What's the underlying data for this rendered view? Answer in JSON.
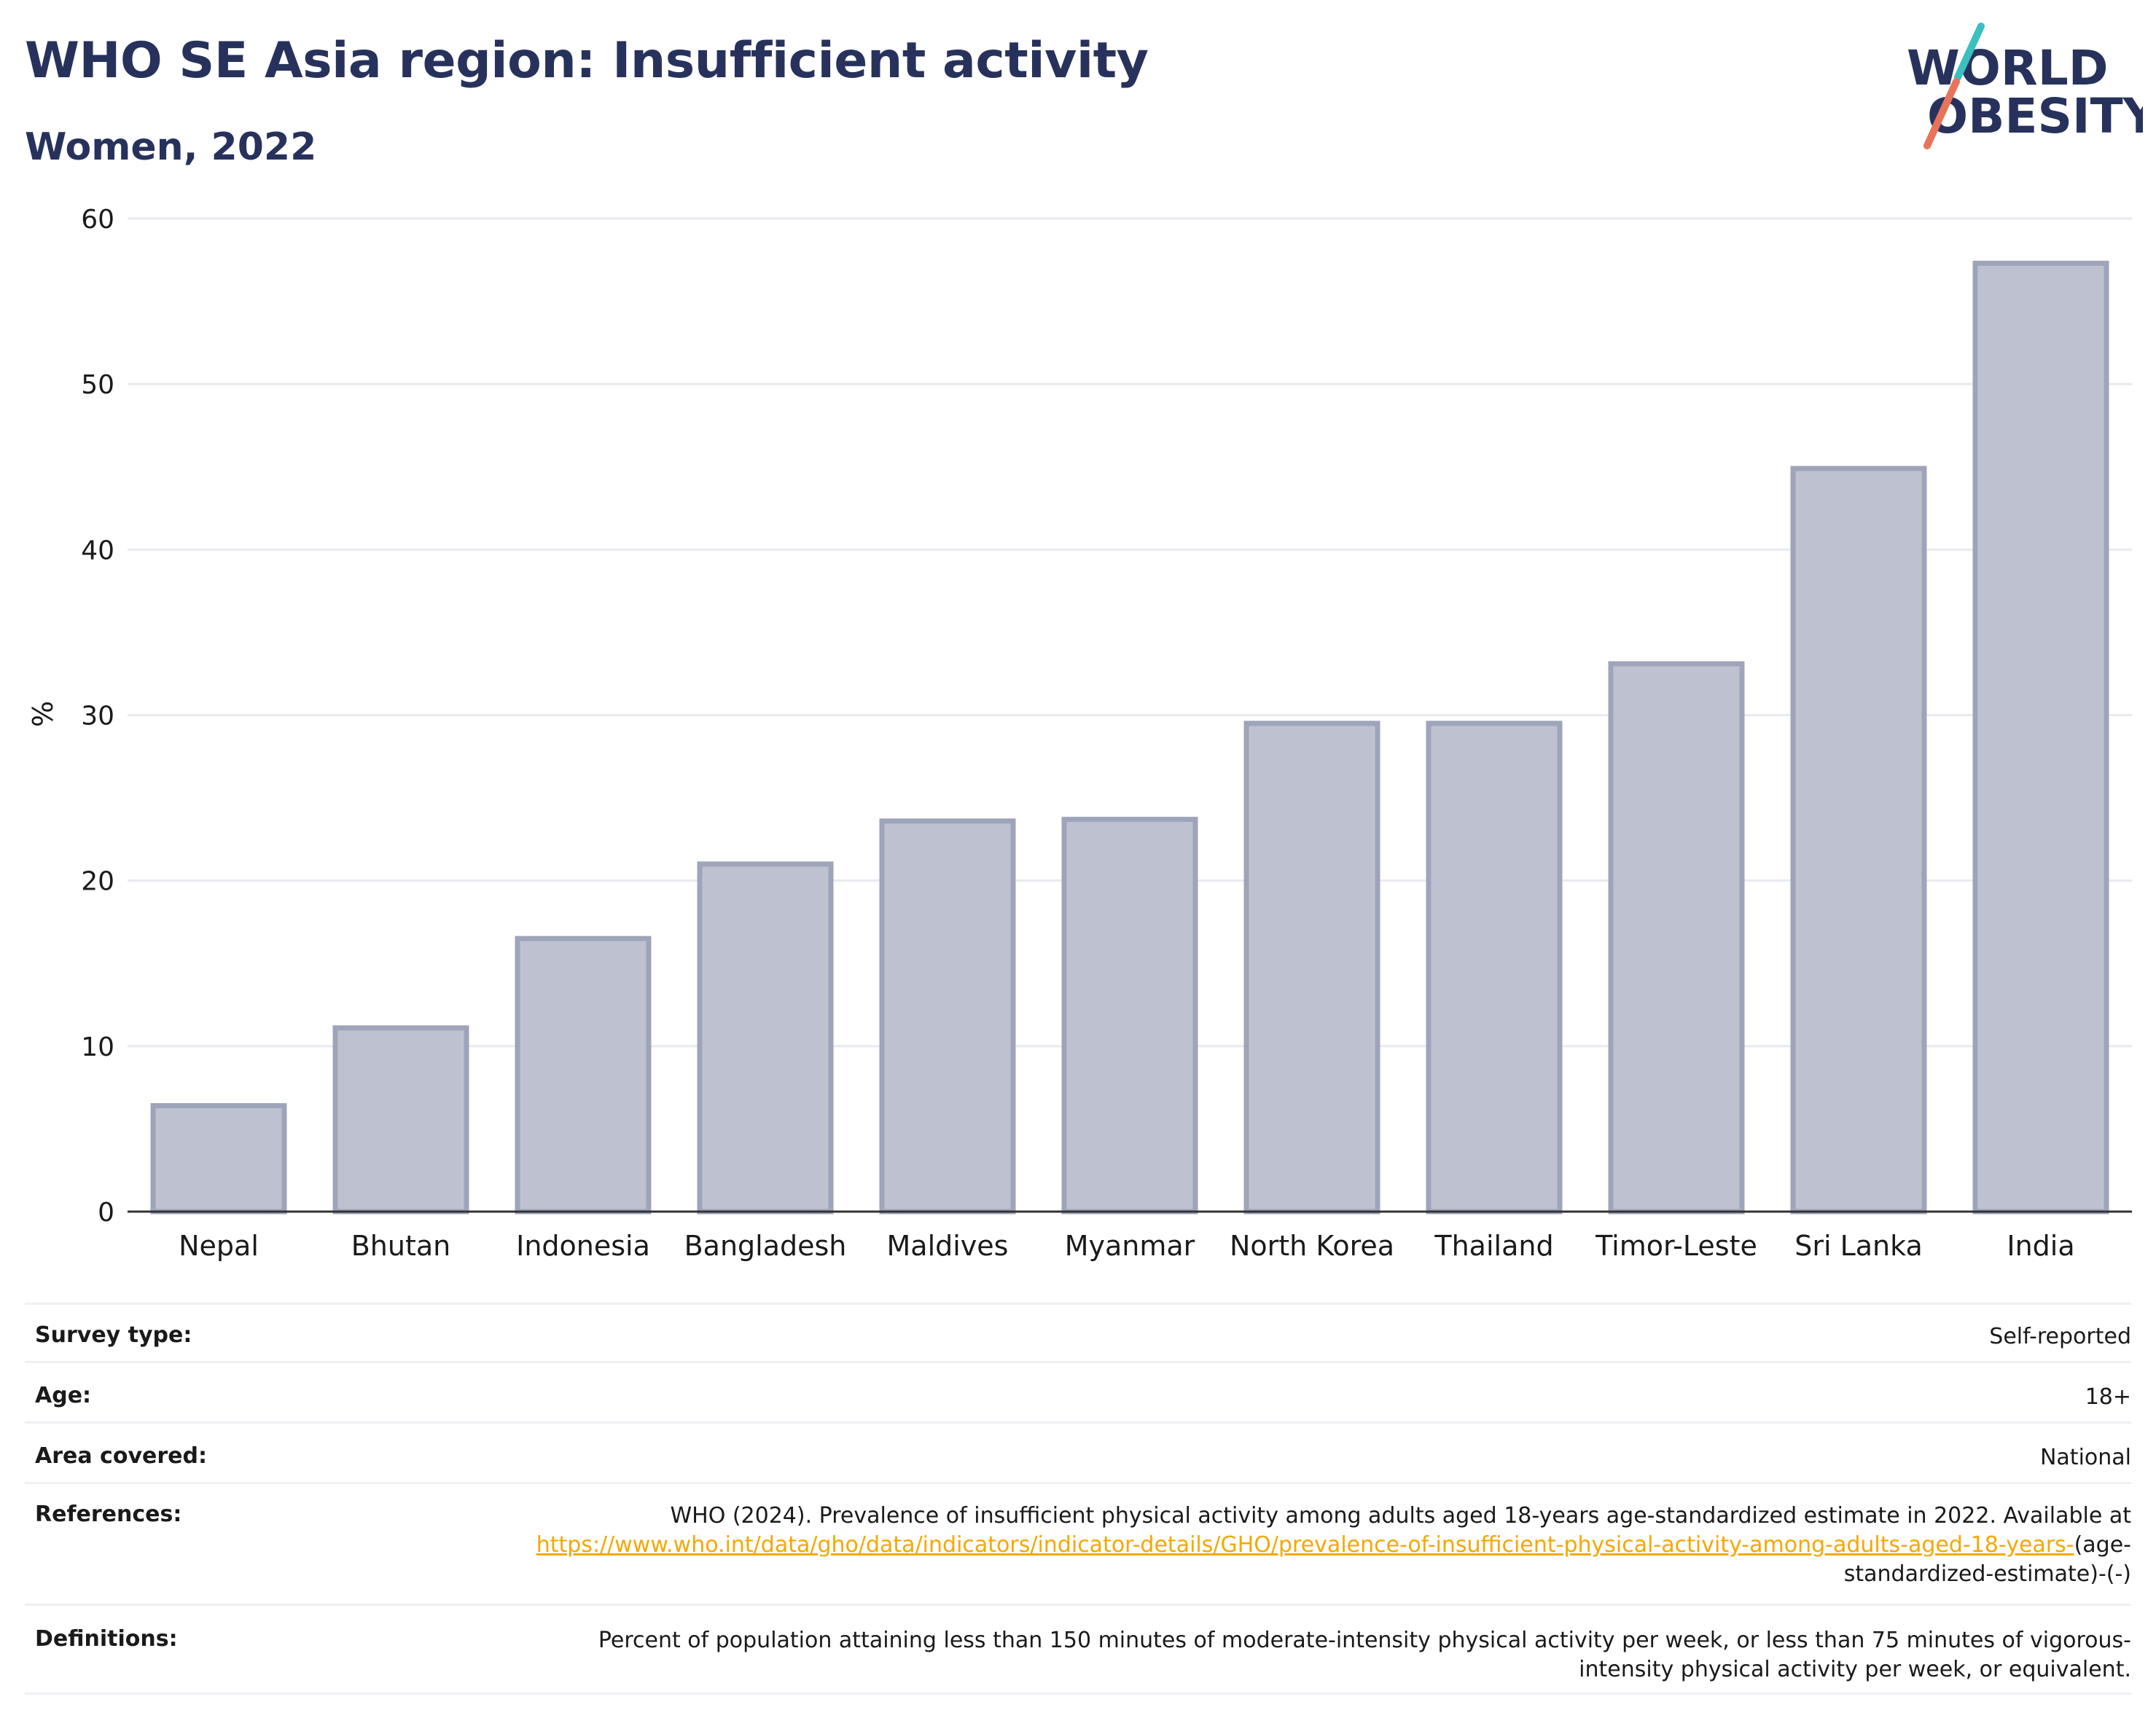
{
  "header": {
    "title": "WHO SE Asia region: Insufficient activity",
    "subtitle": "Women, 2022"
  },
  "logo": {
    "line1": "WORLD",
    "line2": "OBESITY",
    "accent_teal": "#3bbfbf",
    "accent_coral": "#e8735a"
  },
  "chart_data": {
    "type": "bar",
    "categories": [
      "Nepal",
      "Bhutan",
      "Indonesia",
      "Bangladesh",
      "Maldives",
      "Myanmar",
      "North Korea",
      "Thailand",
      "Timor-Leste",
      "Sri Lanka",
      "India"
    ],
    "values": [
      6.4,
      11.1,
      16.5,
      21.0,
      23.6,
      23.7,
      29.5,
      29.5,
      33.1,
      44.9,
      57.3
    ],
    "title": "WHO SE Asia region: Insufficient activity",
    "subtitle": "Women, 2022",
    "xlabel": "",
    "ylabel": "%",
    "ylim": [
      0,
      60
    ],
    "yticks": [
      0,
      10,
      20,
      30,
      40,
      50,
      60
    ],
    "grid": true,
    "bar_fill": "#bec2d0",
    "bar_stroke": "#9ea4ba",
    "axis_color": "#333333",
    "grid_color": "#e8eaef"
  },
  "info": {
    "survey_type": {
      "label": "Survey type:",
      "value": "Self-reported"
    },
    "age": {
      "label": "Age:",
      "value": "18+"
    },
    "area": {
      "label": "Area covered:",
      "value": "National"
    },
    "references": {
      "label": "References:",
      "text": "WHO (2024). Prevalence of insufficient physical activity among adults aged 18-years age-standardized estimate in 2022. Available at",
      "link": "https://www.who.int/data/gho/data/indicators/indicator-details/GHO/prevalence-of-insufficient-physical-activity-among-adults-aged-18-years-",
      "suffix": "(age-standardized-estimate)-(-)"
    },
    "definitions": {
      "label": "Definitions:",
      "value": "Percent of population attaining less than 150 minutes of moderate-intensity physical activity per week, or less than 75 minutes of vigorous-intensity physical activity per week, or equivalent."
    }
  }
}
